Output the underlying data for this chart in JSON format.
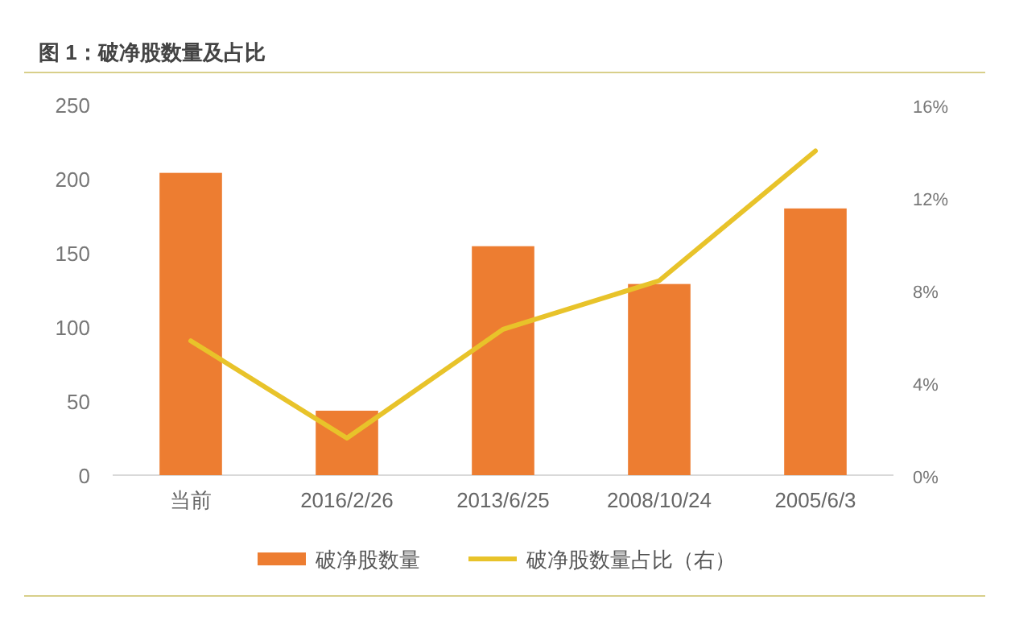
{
  "chart_data": {
    "type": "bar",
    "title": "图 1：破净股数量及占比",
    "categories": [
      "当前",
      "2016/2/26",
      "2013/6/25",
      "2008/10/24",
      "2005/6/3"
    ],
    "series": [
      {
        "name": "破净股数量",
        "color": "#ed7d31",
        "values": [
          204,
          43.5,
          154.5,
          129,
          180
        ]
      },
      {
        "name": "破净股数量占比（右）",
        "type": "line",
        "axis": "y2",
        "color": "#e8c32a",
        "values": [
          5.8,
          1.6,
          6.3,
          8.4,
          14.0
        ]
      }
    ],
    "ylim": [
      0,
      250
    ],
    "yticks": [
      0,
      50,
      100,
      150,
      200,
      250
    ],
    "y2lim": [
      0,
      16
    ],
    "y2ticks": [
      {
        "value": 0,
        "label": "0%"
      },
      {
        "value": 4,
        "label": "4%"
      },
      {
        "value": 8,
        "label": "8%"
      },
      {
        "value": 12,
        "label": "12%"
      },
      {
        "value": 16,
        "label": "16%"
      }
    ],
    "grid": false,
    "legend": "bottom"
  }
}
